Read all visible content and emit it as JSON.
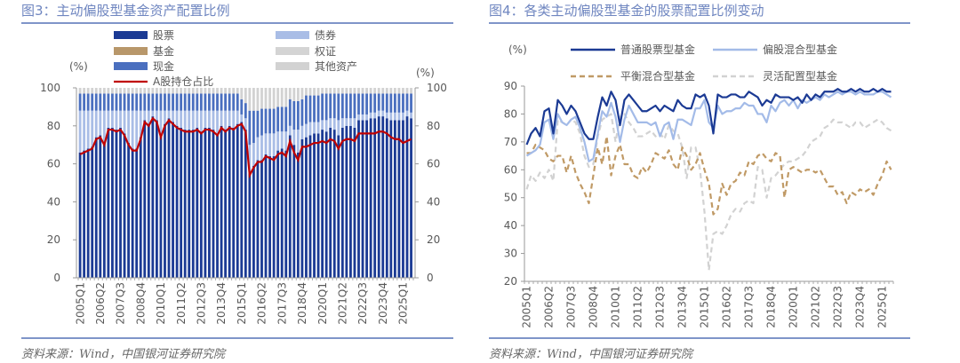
{
  "left": {
    "title": "图3：主动偏股型基金资产配置比例",
    "source": "资料来源：Wind，中国银河证券研究院"
  },
  "right": {
    "title": "图4：各类主动偏股型基金的股票配置比例变动",
    "source": "资料来源：Wind，中国银河证券研究院"
  },
  "chart_data": [
    {
      "type": "bar",
      "stacked": true,
      "title": "图3：主动偏股型基金资产配置比例",
      "ylabel_left": "(%)",
      "ylabel_right": "(%)",
      "ylim": [
        0,
        100
      ],
      "yticks": [
        0,
        20,
        40,
        60,
        80,
        100
      ],
      "x_start": "2005Q1",
      "xtick_labels": [
        "2005Q1",
        "2006Q2",
        "2007Q3",
        "2008Q4",
        "2010Q1",
        "2011Q2",
        "2012Q3",
        "2013Q4",
        "2015Q1",
        "2016Q2",
        "2017Q3",
        "2018Q4",
        "2020Q1",
        "2021Q2",
        "2022Q3",
        "2023Q4",
        "2025Q1"
      ],
      "legend_position": "top",
      "series": [
        {
          "name": "股票",
          "color": "#1b3a94",
          "values": [
            66,
            67,
            68,
            69,
            74,
            75,
            71,
            79,
            79,
            78,
            79,
            76,
            71,
            68,
            68,
            74,
            83,
            81,
            85,
            83,
            75,
            81,
            84,
            82,
            80,
            79,
            78,
            78,
            78,
            79,
            77,
            79,
            79,
            78,
            76,
            80,
            78,
            80,
            79,
            81,
            82,
            78,
            55,
            59,
            62,
            62,
            65,
            64,
            64,
            67,
            68,
            67,
            75,
            70,
            66,
            73,
            74,
            75,
            76,
            76,
            78,
            77,
            79,
            78,
            75,
            79,
            80,
            80,
            79,
            83,
            83,
            83,
            84,
            84,
            85,
            85,
            84,
            83,
            83,
            83,
            83,
            85,
            84
          ]
        },
        {
          "name": "债券",
          "color": "#a9bde6",
          "values": [
            22,
            21,
            20,
            19,
            14,
            13,
            17,
            9,
            9,
            10,
            9,
            12,
            17,
            20,
            20,
            14,
            5,
            7,
            3,
            5,
            13,
            7,
            4,
            6,
            8,
            9,
            10,
            10,
            10,
            9,
            11,
            9,
            9,
            10,
            12,
            8,
            10,
            8,
            9,
            7,
            4,
            6,
            15,
            12,
            12,
            13,
            11,
            12,
            12,
            10,
            9,
            10,
            5,
            8,
            12,
            7,
            7,
            7,
            6,
            6,
            5,
            6,
            5,
            6,
            8,
            5,
            4,
            4,
            5,
            3,
            3,
            3,
            3,
            3,
            3,
            3,
            3,
            4,
            4,
            4,
            4,
            3,
            3
          ]
        },
        {
          "name": "基金",
          "color": "#b8976a",
          "values": []
        },
        {
          "name": "权证",
          "color": "#d4d4d4",
          "values": []
        },
        {
          "name": "现金",
          "color": "#4a6fbf",
          "values": [
            9,
            9,
            9,
            9,
            9,
            9,
            9,
            9,
            9,
            9,
            9,
            9,
            9,
            9,
            9,
            9,
            9,
            9,
            9,
            9,
            9,
            9,
            9,
            9,
            9,
            9,
            9,
            9,
            9,
            9,
            9,
            9,
            9,
            9,
            9,
            9,
            9,
            9,
            9,
            9,
            8,
            8,
            18,
            17,
            14,
            14,
            13,
            13,
            13,
            13,
            13,
            13,
            14,
            15,
            15,
            14,
            15,
            14,
            14,
            14,
            14,
            14,
            13,
            13,
            14,
            13,
            13,
            13,
            13,
            11,
            11,
            11,
            10,
            10,
            9,
            9,
            10,
            10,
            10,
            10,
            10,
            9,
            10
          ]
        },
        {
          "name": "其他资产",
          "color": "#d2d2d2",
          "values": [
            3,
            3,
            3,
            3,
            3,
            3,
            3,
            3,
            3,
            3,
            3,
            3,
            3,
            3,
            3,
            3,
            3,
            3,
            3,
            3,
            3,
            3,
            3,
            3,
            3,
            3,
            3,
            3,
            3,
            3,
            3,
            3,
            3,
            3,
            3,
            3,
            3,
            3,
            3,
            3,
            6,
            8,
            12,
            12,
            12,
            11,
            11,
            11,
            11,
            10,
            10,
            10,
            6,
            7,
            7,
            6,
            4,
            4,
            4,
            4,
            3,
            3,
            3,
            3,
            3,
            3,
            3,
            3,
            3,
            3,
            3,
            3,
            3,
            3,
            3,
            3,
            3,
            3,
            3,
            3,
            3,
            3,
            3
          ]
        },
        {
          "name": "A股持仓占比",
          "type": "line",
          "color": "#c00000",
          "values": [
            65,
            66,
            67,
            68,
            73,
            74,
            70,
            78,
            78,
            77,
            78,
            75,
            70,
            67,
            67,
            73,
            82,
            80,
            84,
            82,
            74,
            80,
            83,
            81,
            79,
            78,
            77,
            77,
            77,
            78,
            76,
            78,
            78,
            77,
            75,
            79,
            77,
            79,
            78,
            80,
            81,
            77,
            54,
            58,
            61,
            61,
            64,
            63,
            62,
            65,
            66,
            64,
            72,
            66,
            62,
            69,
            69,
            70,
            71,
            71,
            72,
            71,
            73,
            72,
            68,
            72,
            73,
            73,
            72,
            76,
            76,
            76,
            76,
            76,
            77,
            77,
            76,
            74,
            73,
            73,
            71,
            72,
            73
          ]
        }
      ]
    },
    {
      "type": "line",
      "title": "图4：各类主动偏股型基金的股票配置比例变动",
      "ylabel": "(%)",
      "ylim": [
        20,
        90
      ],
      "yticks": [
        20,
        30,
        40,
        50,
        60,
        70,
        80,
        90
      ],
      "x_start": "2005Q1",
      "xtick_labels": [
        "2005Q1",
        "2006Q2",
        "2007Q3",
        "2008Q4",
        "2010Q1",
        "2011Q2",
        "2012Q3",
        "2013Q4",
        "2015Q1",
        "2016Q2",
        "2017Q3",
        "2018Q4",
        "2020Q1",
        "2021Q2",
        "2022Q3",
        "2023Q4",
        "2025Q1"
      ],
      "legend_position": "top",
      "series": [
        {
          "name": "普通股票型基金",
          "color": "#1b3a94",
          "dash": false,
          "values": [
            69,
            73,
            75,
            72,
            81,
            82,
            73,
            85,
            83,
            80,
            83,
            81,
            77,
            73,
            71,
            71,
            79,
            86,
            83,
            88,
            85,
            76,
            85,
            87,
            85,
            83,
            81,
            81,
            82,
            83,
            81,
            83,
            82,
            81,
            85,
            83,
            82,
            82,
            87,
            86,
            87,
            83,
            73,
            87,
            86,
            86,
            87,
            87,
            86,
            86,
            88,
            87,
            86,
            83,
            85,
            84,
            87,
            86,
            86,
            86,
            85,
            86,
            84,
            87,
            85,
            87,
            86,
            88,
            88,
            88,
            89,
            88,
            88,
            89,
            88,
            89,
            88,
            88,
            89,
            88,
            89,
            88,
            88
          ]
        },
        {
          "name": "偏股混合型基金",
          "color": "#a3bbe8",
          "dash": false,
          "values": [
            65,
            66,
            67,
            69,
            77,
            78,
            71,
            80,
            77,
            76,
            78,
            79,
            75,
            70,
            63,
            64,
            73,
            81,
            79,
            84,
            79,
            70,
            78,
            83,
            80,
            77,
            77,
            77,
            76,
            77,
            72,
            76,
            77,
            71,
            78,
            78,
            77,
            76,
            82,
            82,
            85,
            77,
            75,
            83,
            80,
            81,
            81,
            82,
            82,
            84,
            83,
            83,
            80,
            80,
            77,
            83,
            81,
            84,
            85,
            83,
            85,
            82,
            85,
            84,
            85,
            86,
            85,
            87,
            86,
            87,
            88,
            87,
            88,
            88,
            87,
            88,
            87,
            87,
            87,
            88,
            88,
            87,
            86
          ]
        },
        {
          "name": "平衡混合型基金",
          "color": "#c09a66",
          "dash": true,
          "values": [
            66,
            66,
            69,
            68,
            67,
            64,
            63,
            65,
            65,
            59,
            65,
            59,
            55,
            52,
            48,
            58,
            68,
            62,
            72,
            58,
            65,
            69,
            62,
            62,
            58,
            57,
            61,
            59,
            62,
            66,
            65,
            64,
            67,
            62,
            60,
            68,
            65,
            60,
            62,
            66,
            60,
            55,
            44,
            46,
            55,
            51,
            55,
            56,
            59,
            58,
            63,
            62,
            65,
            66,
            64,
            63,
            66,
            65,
            50,
            60,
            61,
            60,
            59,
            60,
            60,
            59,
            60,
            57,
            54,
            54,
            51,
            52,
            48,
            52,
            51,
            53,
            52,
            53,
            51,
            55,
            58,
            63,
            60
          ]
        },
        {
          "name": "灵活配置型基金",
          "color": "#d2d2d2",
          "dash": true,
          "values": [
            53,
            58,
            56,
            59,
            57,
            60,
            56,
            78,
            77,
            76,
            78,
            77,
            73,
            65,
            61,
            62,
            72,
            78,
            79,
            80,
            70,
            79,
            80,
            77,
            75,
            72,
            72,
            73,
            74,
            72,
            73,
            71,
            76,
            74,
            73,
            68,
            57,
            68,
            68,
            60,
            45,
            24,
            37,
            38,
            37,
            40,
            44,
            46,
            45,
            48,
            49,
            48,
            61,
            60,
            50,
            57,
            58,
            60,
            62,
            63,
            63,
            64,
            65,
            67,
            70,
            71,
            72,
            75,
            76,
            78,
            77,
            77,
            76,
            75,
            77,
            77,
            75,
            76,
            77,
            78,
            77,
            75,
            74
          ]
        }
      ]
    }
  ]
}
